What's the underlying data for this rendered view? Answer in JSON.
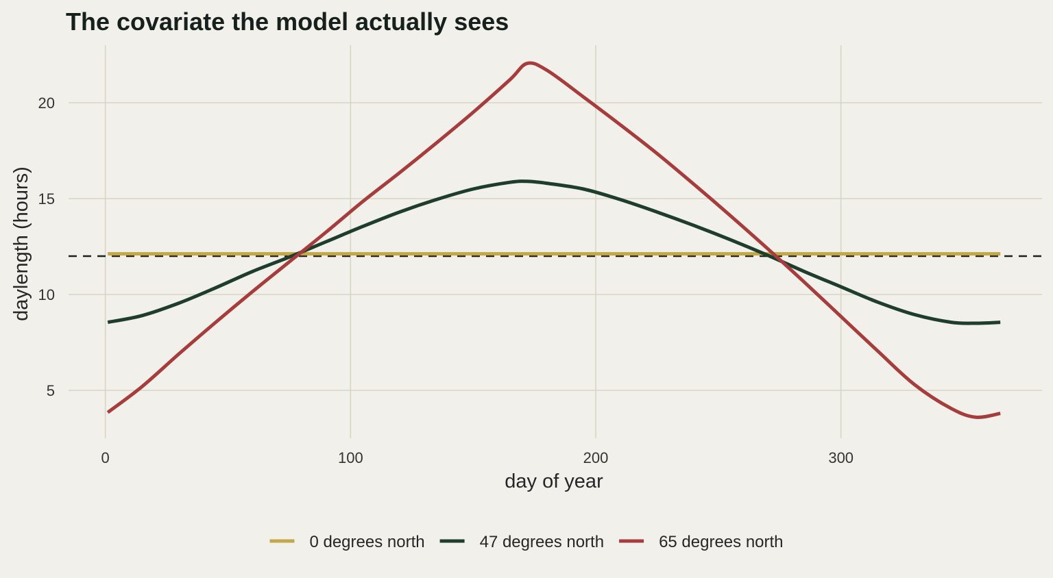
{
  "chart_data": {
    "type": "line",
    "title": "The covariate the model actually sees",
    "xlabel": "day of year",
    "ylabel": "daylength (hours)",
    "xlim": [
      -15,
      382
    ],
    "ylim": [
      2.5,
      23.0
    ],
    "xticks": [
      0,
      100,
      200,
      300
    ],
    "yticks": [
      5,
      10,
      15,
      20
    ],
    "grid": true,
    "legend_position": "bottom",
    "reference_line": {
      "y": 12,
      "style": "dashed",
      "color": "#1f1f1f"
    },
    "series": [
      {
        "name": "0 degrees north",
        "color": "#c2a84a",
        "x": [
          1,
          15,
          30,
          45,
          60,
          75,
          90,
          105,
          120,
          135,
          150,
          165,
          172,
          180,
          195,
          210,
          225,
          240,
          255,
          270,
          285,
          300,
          315,
          330,
          345,
          355,
          365
        ],
        "y": [
          12.12,
          12.12,
          12.12,
          12.12,
          12.12,
          12.12,
          12.12,
          12.12,
          12.12,
          12.12,
          12.12,
          12.12,
          12.12,
          12.12,
          12.12,
          12.12,
          12.12,
          12.12,
          12.12,
          12.12,
          12.12,
          12.12,
          12.12,
          12.12,
          12.12,
          12.12,
          12.12
        ]
      },
      {
        "name": "47 degrees north",
        "color": "#1e3d2c",
        "x": [
          1,
          15,
          30,
          45,
          60,
          75,
          90,
          105,
          120,
          135,
          150,
          165,
          172,
          180,
          195,
          210,
          225,
          240,
          255,
          270,
          285,
          300,
          315,
          330,
          345,
          355,
          365
        ],
        "y": [
          8.55,
          8.9,
          9.55,
          10.35,
          11.2,
          11.95,
          12.75,
          13.55,
          14.3,
          14.95,
          15.5,
          15.85,
          15.9,
          15.8,
          15.5,
          14.95,
          14.3,
          13.6,
          12.85,
          12.05,
          11.2,
          10.4,
          9.6,
          8.95,
          8.55,
          8.5,
          8.55
        ]
      },
      {
        "name": "65 degrees north",
        "color": "#a63d3d",
        "x": [
          1,
          15,
          30,
          45,
          60,
          75,
          90,
          105,
          120,
          135,
          150,
          165,
          172,
          180,
          195,
          210,
          225,
          240,
          255,
          270,
          285,
          300,
          315,
          330,
          345,
          355,
          365
        ],
        "y": [
          3.85,
          5.2,
          6.9,
          8.55,
          10.15,
          11.7,
          13.25,
          14.85,
          16.35,
          17.9,
          19.5,
          21.2,
          22.05,
          21.7,
          20.3,
          18.85,
          17.35,
          15.75,
          14.1,
          12.4,
          10.65,
          8.85,
          7.05,
          5.3,
          4.05,
          3.6,
          3.8
        ]
      }
    ]
  }
}
